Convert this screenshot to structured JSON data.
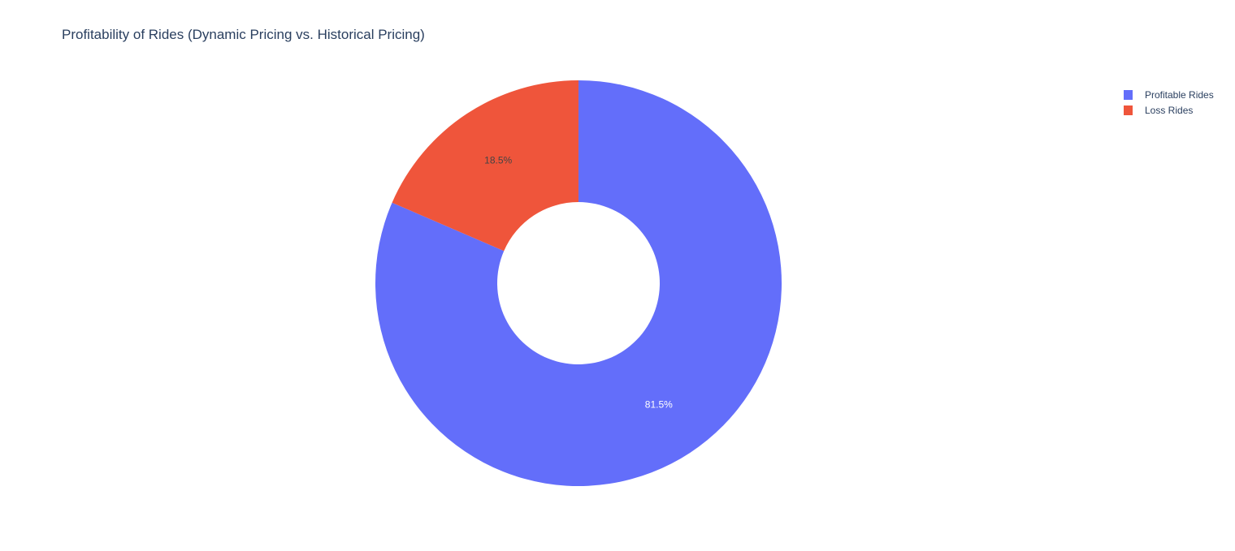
{
  "chart_data": {
    "type": "pie",
    "title": "Profitability of Rides (Dynamic Pricing vs. Historical Pricing)",
    "hole": 0.4,
    "direction": "clockwise",
    "start_angle_deg": 0,
    "legend_position": "top-right",
    "categories": [
      "Profitable Rides",
      "Loss Rides"
    ],
    "values": [
      81.5,
      18.5
    ],
    "labels": [
      "81.5%",
      "18.5%"
    ],
    "colors": [
      "#636efa",
      "#ef553b"
    ],
    "label_colors": [
      "#ffffff",
      "#444444"
    ]
  }
}
